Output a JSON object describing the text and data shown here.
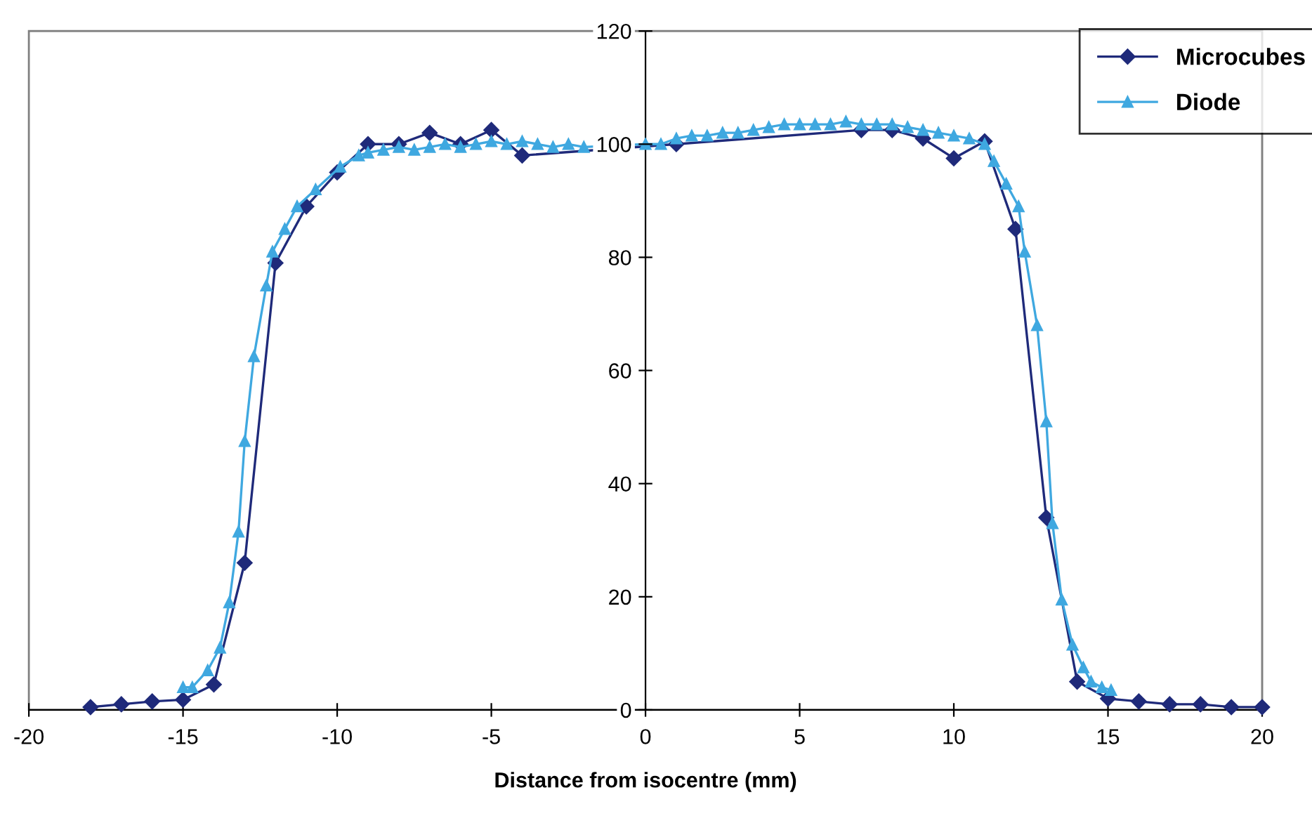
{
  "chart_data": {
    "type": "line",
    "xlabel": "Distance from isocentre (mm)",
    "xlim": [
      -20,
      20
    ],
    "xticks": [
      -20,
      -15,
      -10,
      -5,
      0,
      5,
      10,
      15,
      20
    ],
    "ylim": [
      0,
      120
    ],
    "yticks": [
      0,
      20,
      40,
      60,
      80,
      100,
      120
    ],
    "grid": false,
    "legend": "top right",
    "series": [
      {
        "name": "Microcubes",
        "color": "#1f2a7a",
        "marker": "diamond",
        "x": [
          -18,
          -17,
          -16,
          -15,
          -14,
          -13,
          -12,
          -11,
          -10,
          -9,
          -8,
          -7,
          -6,
          -5,
          -4,
          1,
          7,
          8,
          9,
          10,
          11,
          12,
          13,
          14,
          15,
          16,
          17,
          18,
          19,
          20
        ],
        "values": [
          0.5,
          1,
          1.5,
          1.8,
          4.5,
          26,
          79,
          89,
          95,
          100,
          100,
          102,
          100,
          102.5,
          98,
          100,
          102.5,
          102.5,
          101,
          97.5,
          100.5,
          85,
          34,
          5,
          2,
          1.5,
          1,
          1,
          0.5,
          0.5
        ]
      },
      {
        "name": "Diode",
        "color": "#3fa8e0",
        "marker": "triangle",
        "x": [
          -15,
          -14.7,
          -14.2,
          -13.8,
          -13.5,
          -13.2,
          -13,
          -12.7,
          -12.3,
          -12.1,
          -11.7,
          -11.3,
          -10.7,
          -9.9,
          -9.3,
          -9,
          -8.5,
          -8,
          -7.5,
          -7,
          -6.5,
          -6,
          -5.5,
          -5,
          -4.5,
          -4,
          -3.5,
          -3,
          -2.5,
          -2,
          0,
          0.5,
          1,
          1.5,
          2,
          2.5,
          3,
          3.5,
          4,
          4.5,
          5,
          5.5,
          6,
          6.5,
          7,
          7.5,
          8,
          8.5,
          9,
          9.5,
          10,
          10.5,
          11,
          11.3,
          11.7,
          12.1,
          12.3,
          12.7,
          13,
          13.2,
          13.5,
          13.85,
          14.2,
          14.45,
          14.8,
          15.1
        ],
        "values": [
          4,
          4,
          7,
          11,
          19,
          31.5,
          47.5,
          62.5,
          75,
          81,
          85,
          89,
          92,
          96,
          98,
          98.5,
          99,
          99.5,
          99,
          99.5,
          100,
          99.5,
          100,
          100.5,
          100,
          100.5,
          100,
          99.5,
          100,
          99.5,
          100,
          100,
          101,
          101.5,
          101.5,
          102,
          102,
          102.5,
          103,
          103.5,
          103.5,
          103.5,
          103.5,
          104,
          103.5,
          103.5,
          103.5,
          103,
          102.5,
          102,
          101.5,
          101,
          100,
          97,
          93,
          89,
          81,
          68,
          51,
          33,
          19.5,
          11.5,
          7.5,
          5,
          4,
          3.5
        ]
      }
    ]
  }
}
